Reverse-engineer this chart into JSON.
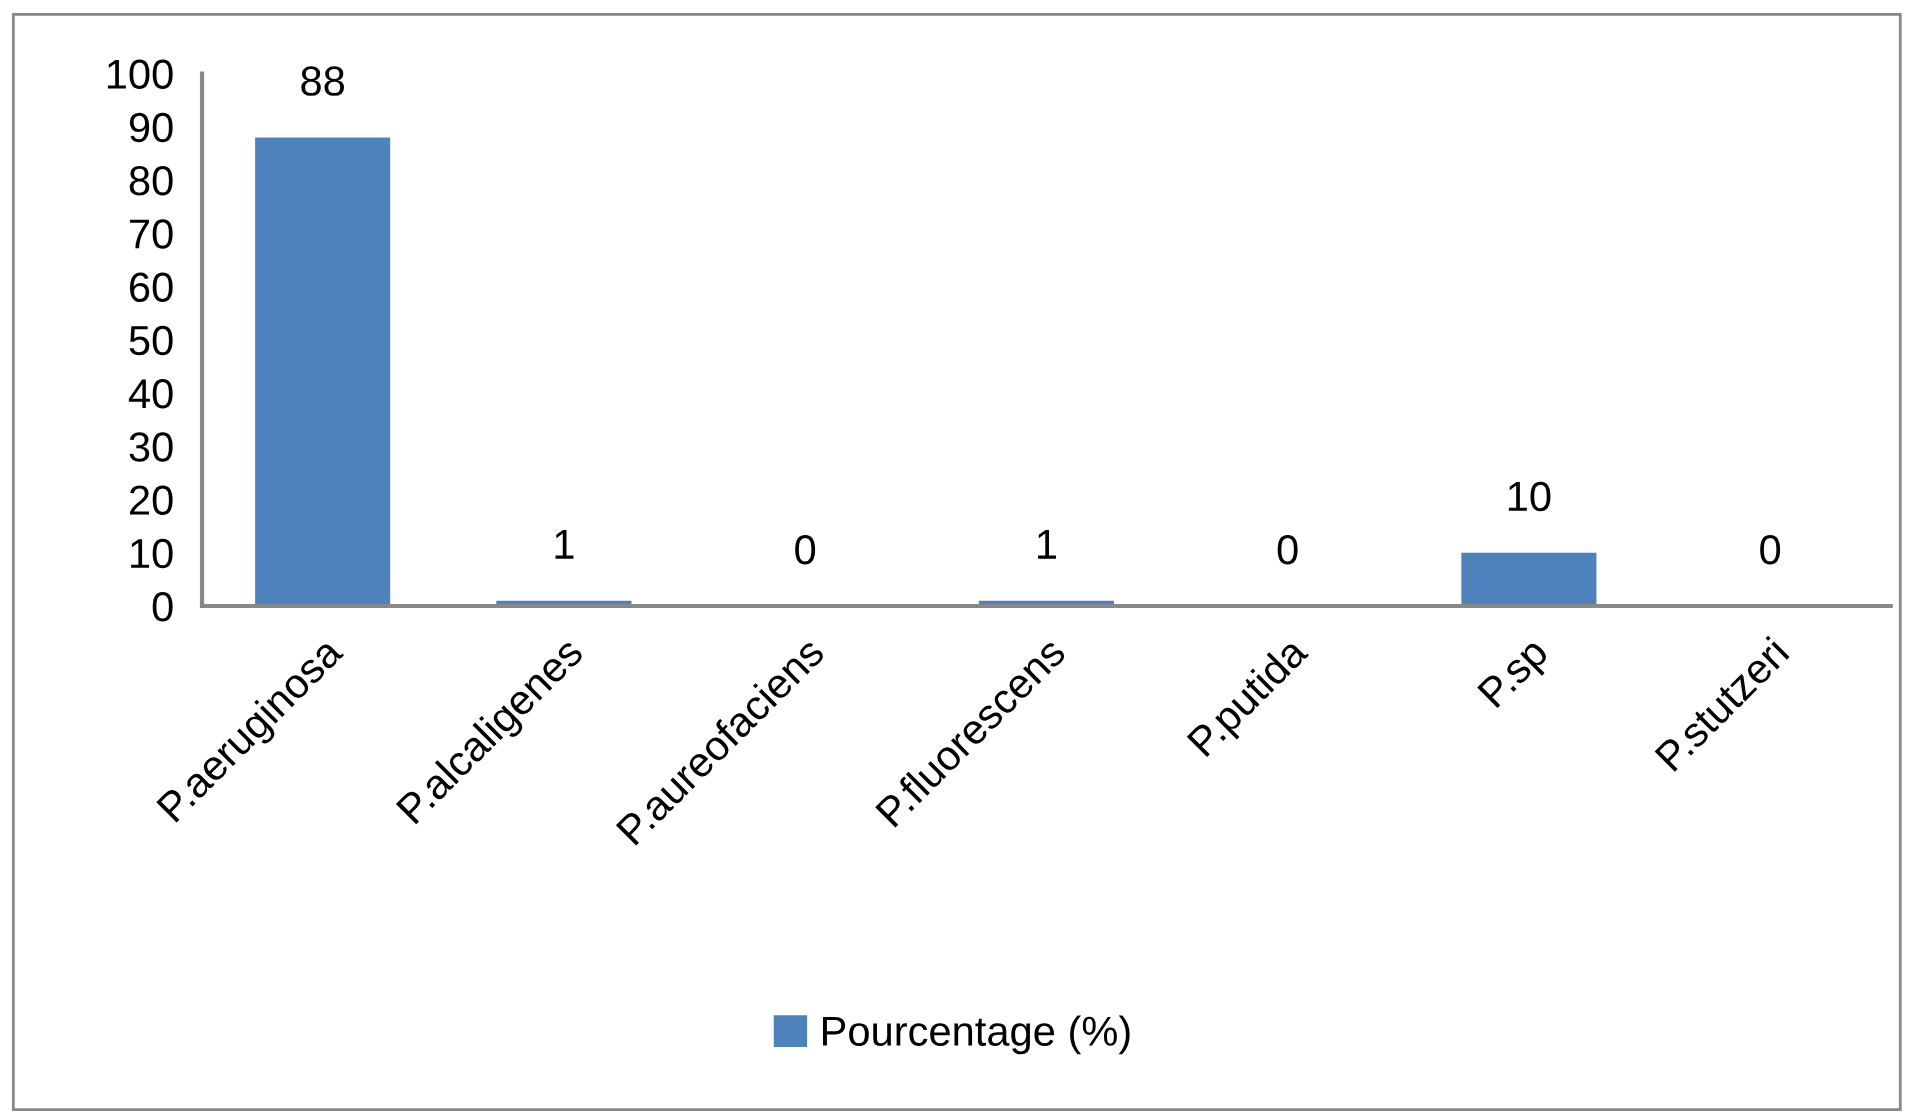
{
  "chart_data": {
    "type": "bar",
    "categories": [
      "P.aeruginosa",
      "P.alcaligenes",
      "P.aureofaciens",
      "P.fluorescens",
      "P.putida",
      "P.sp",
      "P.stutzeri"
    ],
    "series": [
      {
        "name": "Pourcentage (%)",
        "color": "#4f81bd",
        "values": [
          88,
          1,
          0,
          1,
          0,
          10,
          0
        ]
      }
    ],
    "ylim": [
      0,
      100
    ],
    "yticks": [
      0,
      10,
      20,
      30,
      40,
      50,
      60,
      70,
      80,
      90,
      100
    ],
    "data_labels": true,
    "legend": "bottom",
    "grid": false
  }
}
